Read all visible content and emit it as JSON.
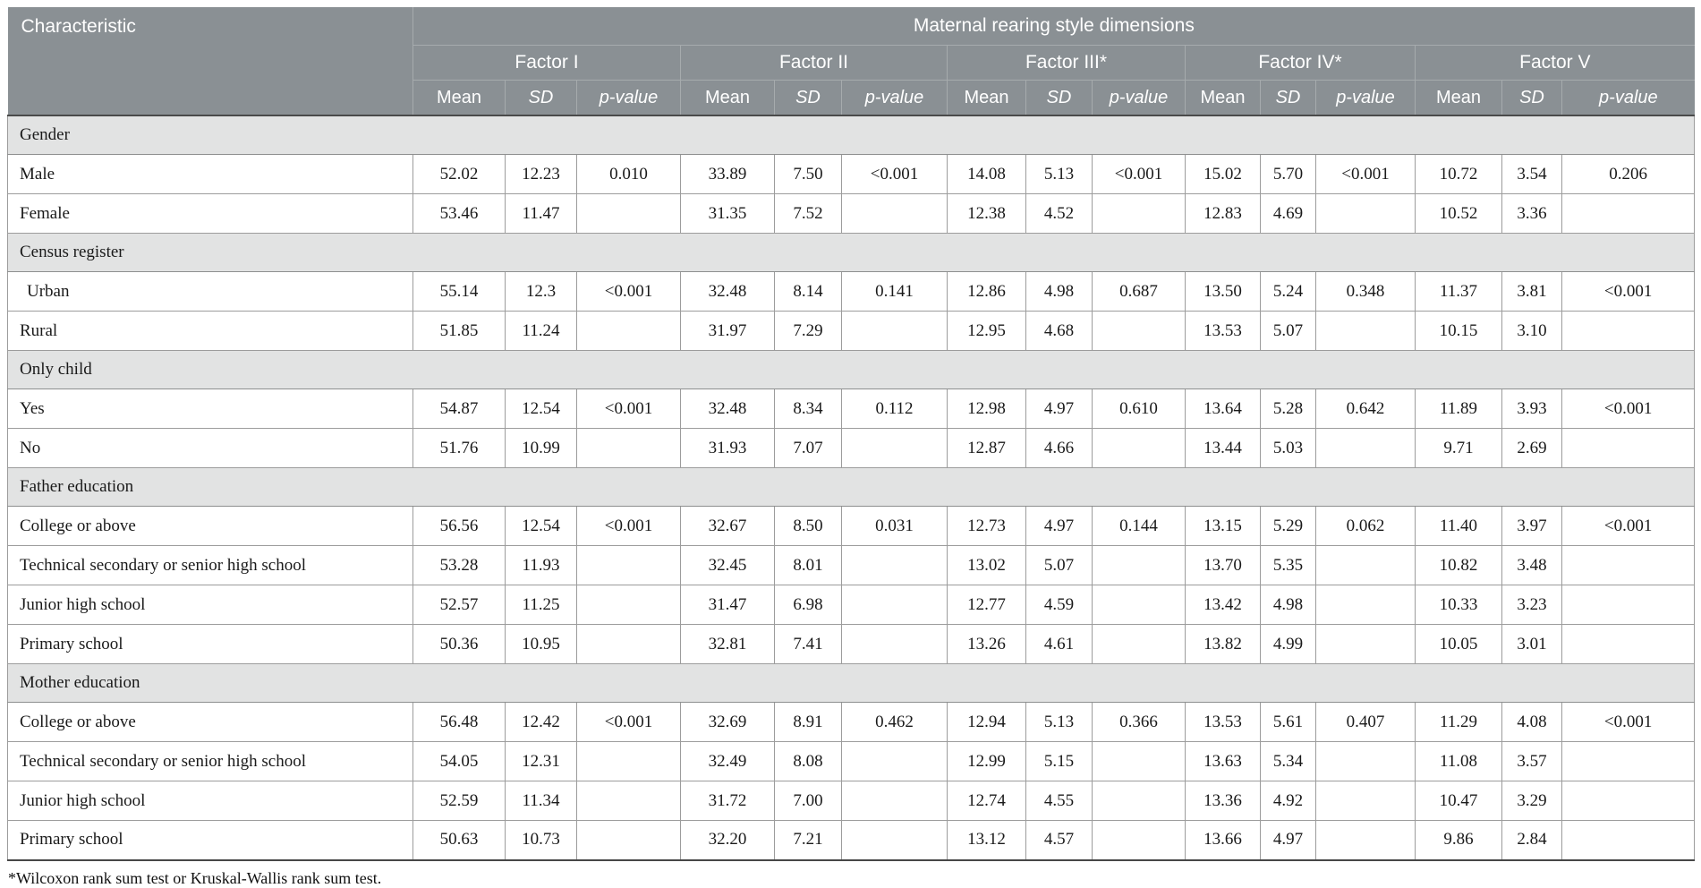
{
  "table": {
    "char_header": "Characteristic",
    "group_header": "Maternal rearing style dimensions",
    "factors": [
      "Factor I",
      "Factor II",
      "Factor III*",
      "Factor IV*",
      "Factor V"
    ],
    "subcols": {
      "mean": "Mean",
      "sd": "SD",
      "p": "p-value"
    },
    "sections": [
      {
        "label": "Gender",
        "rows": [
          {
            "label": "Male",
            "indent": false,
            "values": [
              "52.02",
              "12.23",
              "0.010",
              "33.89",
              "7.50",
              "<0.001",
              "14.08",
              "5.13",
              "<0.001",
              "15.02",
              "5.70",
              "<0.001",
              "10.72",
              "3.54",
              "0.206"
            ]
          },
          {
            "label": "Female",
            "indent": false,
            "values": [
              "53.46",
              "11.47",
              "",
              "31.35",
              "7.52",
              "",
              "12.38",
              "4.52",
              "",
              "12.83",
              "4.69",
              "",
              "10.52",
              "3.36",
              ""
            ]
          }
        ]
      },
      {
        "label": "Census register",
        "rows": [
          {
            "label": "Urban",
            "indent": true,
            "values": [
              "55.14",
              "12.3",
              "<0.001",
              "32.48",
              "8.14",
              "0.141",
              "12.86",
              "4.98",
              "0.687",
              "13.50",
              "5.24",
              "0.348",
              "11.37",
              "3.81",
              "<0.001"
            ]
          },
          {
            "label": "Rural",
            "indent": false,
            "values": [
              "51.85",
              "11.24",
              "",
              "31.97",
              "7.29",
              "",
              "12.95",
              "4.68",
              "",
              "13.53",
              "5.07",
              "",
              "10.15",
              "3.10",
              ""
            ]
          }
        ]
      },
      {
        "label": "Only child",
        "rows": [
          {
            "label": "Yes",
            "indent": false,
            "values": [
              "54.87",
              "12.54",
              "<0.001",
              "32.48",
              "8.34",
              "0.112",
              "12.98",
              "4.97",
              "0.610",
              "13.64",
              "5.28",
              "0.642",
              "11.89",
              "3.93",
              "<0.001"
            ]
          },
          {
            "label": "No",
            "indent": false,
            "values": [
              "51.76",
              "10.99",
              "",
              "31.93",
              "7.07",
              "",
              "12.87",
              "4.66",
              "",
              "13.44",
              "5.03",
              "",
              "9.71",
              "2.69",
              ""
            ]
          }
        ]
      },
      {
        "label": "Father education",
        "rows": [
          {
            "label": "College or above",
            "indent": false,
            "values": [
              "56.56",
              "12.54",
              "<0.001",
              "32.67",
              "8.50",
              "0.031",
              "12.73",
              "4.97",
              "0.144",
              "13.15",
              "5.29",
              "0.062",
              "11.40",
              "3.97",
              "<0.001"
            ]
          },
          {
            "label": "Technical secondary or senior high school",
            "indent": false,
            "values": [
              "53.28",
              "11.93",
              "",
              "32.45",
              "8.01",
              "",
              "13.02",
              "5.07",
              "",
              "13.70",
              "5.35",
              "",
              "10.82",
              "3.48",
              ""
            ]
          },
          {
            "label": "Junior high school",
            "indent": false,
            "values": [
              "52.57",
              "11.25",
              "",
              "31.47",
              "6.98",
              "",
              "12.77",
              "4.59",
              "",
              "13.42",
              "4.98",
              "",
              "10.33",
              "3.23",
              ""
            ]
          },
          {
            "label": "Primary school",
            "indent": false,
            "values": [
              "50.36",
              "10.95",
              "",
              "32.81",
              "7.41",
              "",
              "13.26",
              "4.61",
              "",
              "13.82",
              "4.99",
              "",
              "10.05",
              "3.01",
              ""
            ]
          }
        ]
      },
      {
        "label": "Mother education",
        "rows": [
          {
            "label": "College or above",
            "indent": false,
            "values": [
              "56.48",
              "12.42",
              "<0.001",
              "32.69",
              "8.91",
              "0.462",
              "12.94",
              "5.13",
              "0.366",
              "13.53",
              "5.61",
              "0.407",
              "11.29",
              "4.08",
              "<0.001"
            ]
          },
          {
            "label": "Technical secondary or senior high school",
            "indent": false,
            "values": [
              "54.05",
              "12.31",
              "",
              "32.49",
              "8.08",
              "",
              "12.99",
              "5.15",
              "",
              "13.63",
              "5.34",
              "",
              "11.08",
              "3.57",
              ""
            ]
          },
          {
            "label": "Junior high school",
            "indent": false,
            "values": [
              "52.59",
              "11.34",
              "",
              "31.72",
              "7.00",
              "",
              "12.74",
              "4.55",
              "",
              "13.36",
              "4.92",
              "",
              "10.47",
              "3.29",
              ""
            ]
          },
          {
            "label": "Primary school",
            "indent": false,
            "values": [
              "50.63",
              "10.73",
              "",
              "32.20",
              "7.21",
              "",
              "13.12",
              "4.57",
              "",
              "13.66",
              "4.97",
              "",
              "9.86",
              "2.84",
              ""
            ]
          }
        ]
      }
    ],
    "footnote": "*Wilcoxon rank sum test or Kruskal-Wallis rank sum test.",
    "colors": {
      "header_bg": "#8a9094",
      "header_text": "#ffffff",
      "section_bg": "#e2e3e3",
      "body_border": "#9c9c9c",
      "dark_rule": "#4a4a4a",
      "text": "#1a1a1a"
    }
  }
}
